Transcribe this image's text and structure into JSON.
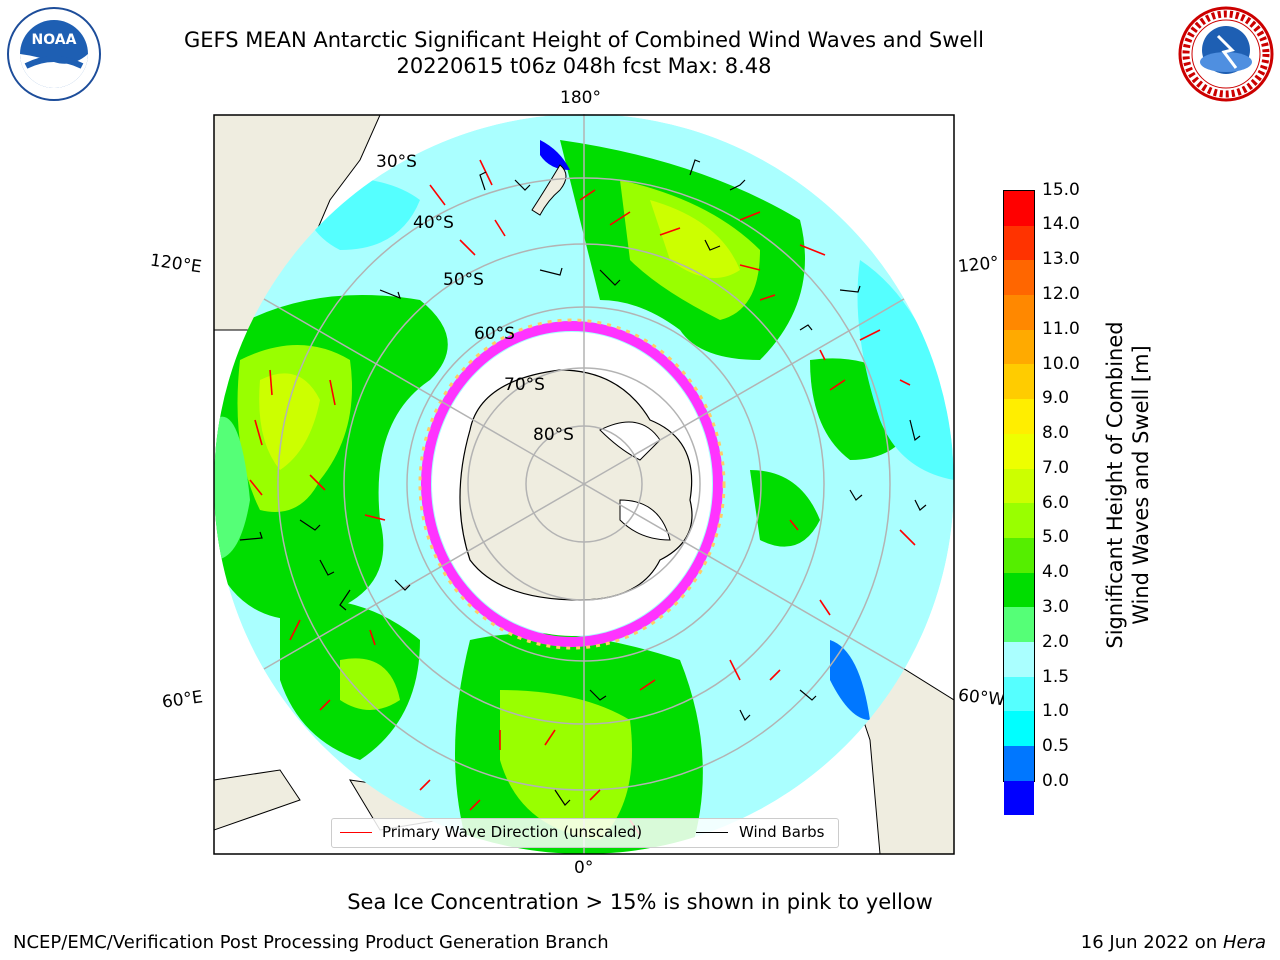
{
  "title": {
    "line1": "GEFS MEAN Antarctic Significant Height of Combined Wind Waves and Swell",
    "line2": "20220615 t06z 048h fcst   Max: 8.48"
  },
  "logos": {
    "left": {
      "name": "NOAA",
      "text": "NOAA"
    },
    "right": {
      "name": "National Weather Service"
    }
  },
  "map": {
    "projection": "south-polar-stereographic",
    "lon_labels": [
      "180°",
      "120°E",
      "120°",
      "60°E",
      "60°W",
      "0°"
    ],
    "lat_labels": [
      "30°S",
      "40°S",
      "50°S",
      "60°S",
      "70°S",
      "80°S"
    ]
  },
  "legend": {
    "primary": "Primary Wave Direction (unscaled)",
    "barbs": "Wind Barbs",
    "primary_color": "#ff0000",
    "barbs_color": "#000000"
  },
  "colorbar": {
    "label_line1": "Significant Height of Combined",
    "label_line2": "Wind Waves and Swell [m]",
    "ticks": [
      "15.0",
      "14.0",
      "13.0",
      "12.0",
      "11.0",
      "10.0",
      "9.0",
      "8.0",
      "7.0",
      "6.0",
      "5.0",
      "4.0",
      "3.0",
      "2.0",
      "1.5",
      "1.0",
      "0.5",
      "0.0"
    ],
    "colors": [
      "#ff0000",
      "#ff3300",
      "#ff6600",
      "#ff8800",
      "#ffaa00",
      "#ffcc00",
      "#ffee00",
      "#eeff00",
      "#ccff00",
      "#99ff00",
      "#55ee00",
      "#00dd00",
      "#55ff77",
      "#aaffff",
      "#55ffff",
      "#00ffff",
      "#0077ff",
      "#0000ff"
    ]
  },
  "footer": {
    "sea_ice_note": "Sea Ice Concentration > 15% is shown in pink to yellow",
    "left": "NCEP/EMC/Verification Post Processing Product Generation Branch",
    "right_date": "16 Jun 2022 on ",
    "right_host": "Hera"
  }
}
